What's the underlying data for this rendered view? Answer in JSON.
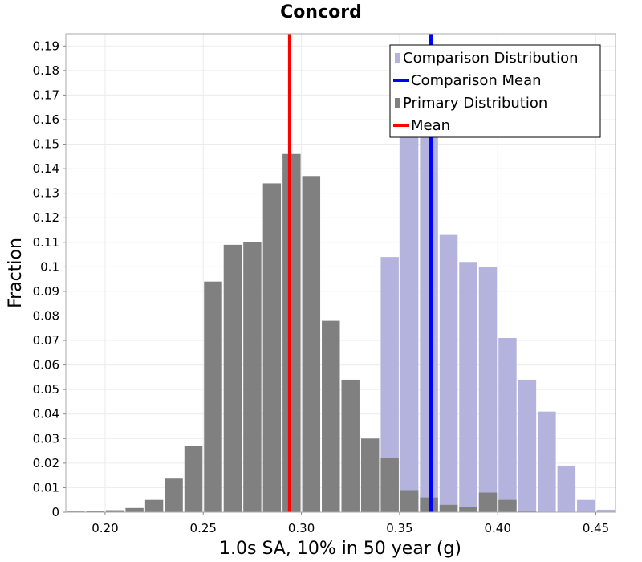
{
  "chart_data": {
    "type": "bar",
    "title": "Concord",
    "xlabel": "1.0s SA, 10% in 50 year (g)",
    "ylabel": "Fraction",
    "xlim": [
      0.18,
      0.46
    ],
    "ylim": [
      0,
      0.195
    ],
    "grid": true,
    "legend_position": "top-right",
    "bin_width": 0.01,
    "x_ticks": [
      0.2,
      0.25,
      0.3,
      0.35,
      0.4,
      0.45
    ],
    "x_tick_labels": [
      "0.20",
      "0.25",
      "0.30",
      "0.35",
      "0.40",
      "0.45"
    ],
    "y_ticks": [
      0,
      0.01,
      0.02,
      0.03,
      0.04,
      0.05,
      0.06,
      0.07,
      0.08,
      0.09,
      0.1,
      0.11,
      0.12,
      0.13,
      0.14,
      0.15,
      0.16,
      0.17,
      0.18,
      0.19
    ],
    "y_tick_labels": [
      "0",
      "0.01",
      "0.02",
      "0.03",
      "0.04",
      "0.05",
      "0.06",
      "0.07",
      "0.08",
      "0.09",
      "0.1",
      "0.11",
      "0.12",
      "0.13",
      "0.14",
      "0.15",
      "0.16",
      "0.17",
      "0.18",
      "0.19"
    ],
    "comparison_distribution": {
      "name": "Comparison Distribution",
      "color": "#b3b3dd",
      "bins": [
        0.34,
        0.35,
        0.36,
        0.37,
        0.38,
        0.39,
        0.4,
        0.41,
        0.42,
        0.43,
        0.44,
        0.45
      ],
      "values": [
        0.104,
        0.163,
        0.153,
        0.113,
        0.102,
        0.1,
        0.071,
        0.054,
        0.041,
        0.019,
        0.005,
        0.001
      ]
    },
    "primary_distribution": {
      "name": "Primary Distribution",
      "color": "#808080",
      "bins": [
        0.18,
        0.19,
        0.2,
        0.21,
        0.22,
        0.23,
        0.24,
        0.25,
        0.26,
        0.27,
        0.28,
        0.29,
        0.3,
        0.31,
        0.32,
        0.33,
        0.34,
        0.35,
        0.36,
        0.37,
        0.38,
        0.39,
        0.4,
        0.41
      ],
      "values": [
        0.0003,
        0.0005,
        0.0008,
        0.0017,
        0.005,
        0.014,
        0.027,
        0.094,
        0.109,
        0.11,
        0.134,
        0.146,
        0.137,
        0.078,
        0.054,
        0.03,
        0.022,
        0.009,
        0.006,
        0.003,
        0.002,
        0.008,
        0.005,
        0.0003
      ]
    },
    "comparison_mean": {
      "name": "Comparison Mean",
      "color": "#0000ff",
      "value": 0.366
    },
    "mean": {
      "name": "Mean",
      "color": "#ff0000",
      "value": 0.294
    },
    "legend": [
      {
        "label": "Comparison Distribution",
        "kind": "box",
        "color": "#b3b3dd"
      },
      {
        "label": "Comparison Mean",
        "kind": "line",
        "color": "#0000ff"
      },
      {
        "label": "Primary Distribution",
        "kind": "box",
        "color": "#808080"
      },
      {
        "label": "Mean",
        "kind": "line",
        "color": "#ff0000"
      }
    ]
  }
}
